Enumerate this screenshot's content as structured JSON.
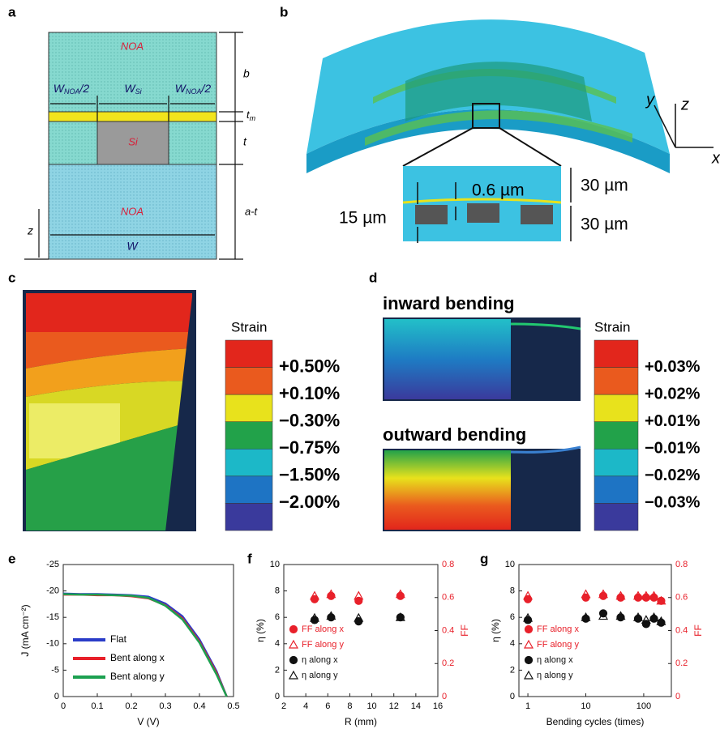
{
  "panels": {
    "a": {
      "letter": "a",
      "top_material": "NOA",
      "si": "Si",
      "bottom_material": "NOA",
      "w_noa_left": {
        "main": "W",
        "sub": "NOA",
        "rest": "/2"
      },
      "w_si": {
        "main": "W",
        "sub": "Si"
      },
      "w_noa_right": {
        "main": "W",
        "sub": "NOA",
        "rest": "/2"
      },
      "b": "b",
      "tm": {
        "main": "t",
        "sub": "m"
      },
      "t": "t",
      "a_t": "a-t",
      "z": "z",
      "w": "W"
    },
    "b": {
      "letter": "b",
      "thickness": "0.6 µm",
      "top": "30 µm",
      "bottom": "30 µm",
      "width": "15 µm",
      "axis_y": "y",
      "axis_z": "z",
      "axis_x": "x"
    },
    "c": {
      "letter": "c",
      "legend_title": "Strain",
      "legend_labels": [
        "+0.50%",
        "+0.10%",
        "−0.30%",
        "−0.75%",
        "−1.50%",
        "−2.00%"
      ],
      "legend_colors": [
        "#e2261c",
        "#ea5a1e",
        "#e8e21c",
        "#22a24a",
        "#1cb8c8",
        "#1e74c4",
        "#3a3a9c"
      ]
    },
    "d": {
      "letter": "d",
      "inward": "inward bending",
      "outward": "outward bending",
      "legend_title": "Strain",
      "legend_labels": [
        "+0.03%",
        "+0.02%",
        "+0.01%",
        "−0.01%",
        "−0.02%",
        "−0.03%"
      ],
      "legend_colors": [
        "#e2261c",
        "#ea5a1e",
        "#e8e21c",
        "#22a24a",
        "#1cb8c8",
        "#1e74c4",
        "#3a3a9c"
      ]
    }
  },
  "chart_data": [
    {
      "type": "line",
      "letter": "e",
      "x_label": "V (V)",
      "y_label": "J (mA cm⁻²)",
      "xlim": [
        0,
        0.5
      ],
      "xticks": [
        0,
        0.1,
        0.2,
        0.3,
        0.4,
        0.5
      ],
      "ylim": [
        0,
        -25
      ],
      "yticks": [
        -25,
        -20,
        -15,
        -10,
        -5,
        0
      ],
      "x": [
        0,
        0.05,
        0.1,
        0.15,
        0.2,
        0.25,
        0.3,
        0.35,
        0.4,
        0.45,
        0.48
      ],
      "series": [
        {
          "name": "Flat",
          "color": "#2a3cc8",
          "values": [
            -19.5,
            -19.4,
            -19.4,
            -19.3,
            -19.2,
            -18.9,
            -17.6,
            -15.2,
            -10.8,
            -4.8,
            0
          ]
        },
        {
          "name": "Bent along x",
          "color": "#e8202a",
          "values": [
            -19.3,
            -19.3,
            -19.2,
            -19.2,
            -19.0,
            -18.6,
            -17.3,
            -14.8,
            -10.4,
            -4.5,
            0
          ]
        },
        {
          "name": "Bent along y",
          "color": "#1ca050",
          "values": [
            -19.4,
            -19.3,
            -19.3,
            -19.2,
            -19.1,
            -18.7,
            -17.2,
            -14.6,
            -10.2,
            -4.2,
            0
          ]
        }
      ]
    },
    {
      "type": "scatter",
      "letter": "f",
      "x_label": "R (mm)",
      "y_label": "η (%)",
      "y2_label": "FF",
      "y2_color": "#e8202a",
      "xlim": [
        2,
        16
      ],
      "xticks": [
        2,
        4,
        6,
        8,
        10,
        12,
        14,
        16
      ],
      "ylim": [
        0,
        10
      ],
      "yticks": [
        0,
        2,
        4,
        6,
        8,
        10
      ],
      "y2lim": [
        0,
        0.8
      ],
      "y2ticks": [
        0,
        0.2,
        0.4,
        0.6,
        0.8
      ],
      "x": [
        4.8,
        6.3,
        8.8,
        12.6
      ],
      "series": [
        {
          "name": "FF along x",
          "color": "#e8202a",
          "marker": "circle",
          "filled": true,
          "axis": "y2",
          "values": [
            0.59,
            0.61,
            0.58,
            0.61
          ]
        },
        {
          "name": "FF along y",
          "color": "#e8202a",
          "marker": "triangle",
          "filled": false,
          "axis": "y2",
          "values": [
            0.61,
            0.62,
            0.61,
            0.62
          ]
        },
        {
          "name": "η along x",
          "color": "#111111",
          "marker": "circle",
          "filled": true,
          "values": [
            5.8,
            6.0,
            5.7,
            6.0
          ]
        },
        {
          "name": "η along y",
          "color": "#111111",
          "marker": "triangle",
          "filled": false,
          "values": [
            5.95,
            6.1,
            5.95,
            6.0
          ]
        }
      ]
    },
    {
      "type": "scatter",
      "letter": "g",
      "x_label": "Bending cycles (times)",
      "y_label": "η (%)",
      "y2_label": "FF",
      "y2_color": "#e8202a",
      "xscale": "log",
      "xlim": [
        0.7,
        300
      ],
      "xticks": [
        1,
        10,
        100
      ],
      "ylim": [
        0,
        10
      ],
      "yticks": [
        0,
        2,
        4,
        6,
        8,
        10
      ],
      "y2lim": [
        0,
        0.8
      ],
      "y2ticks": [
        0,
        0.2,
        0.4,
        0.6,
        0.8
      ],
      "x": [
        1,
        10,
        20,
        40,
        80,
        110,
        150,
        200
      ],
      "series": [
        {
          "name": "FF along x",
          "color": "#e8202a",
          "marker": "circle",
          "filled": true,
          "axis": "y2",
          "values": [
            0.59,
            0.6,
            0.61,
            0.6,
            0.6,
            0.6,
            0.6,
            0.58
          ]
        },
        {
          "name": "FF along y",
          "color": "#e8202a",
          "marker": "triangle",
          "filled": false,
          "axis": "y2",
          "values": [
            0.61,
            0.62,
            0.62,
            0.61,
            0.61,
            0.61,
            0.61,
            0.58
          ]
        },
        {
          "name": "η along x",
          "color": "#111111",
          "marker": "circle",
          "filled": true,
          "values": [
            5.8,
            5.9,
            6.3,
            6.0,
            5.9,
            5.5,
            5.9,
            5.6
          ]
        },
        {
          "name": "η along y",
          "color": "#111111",
          "marker": "triangle",
          "filled": false,
          "values": [
            5.95,
            6.0,
            6.1,
            6.1,
            6.0,
            5.8,
            6.0,
            5.7
          ]
        }
      ]
    }
  ]
}
